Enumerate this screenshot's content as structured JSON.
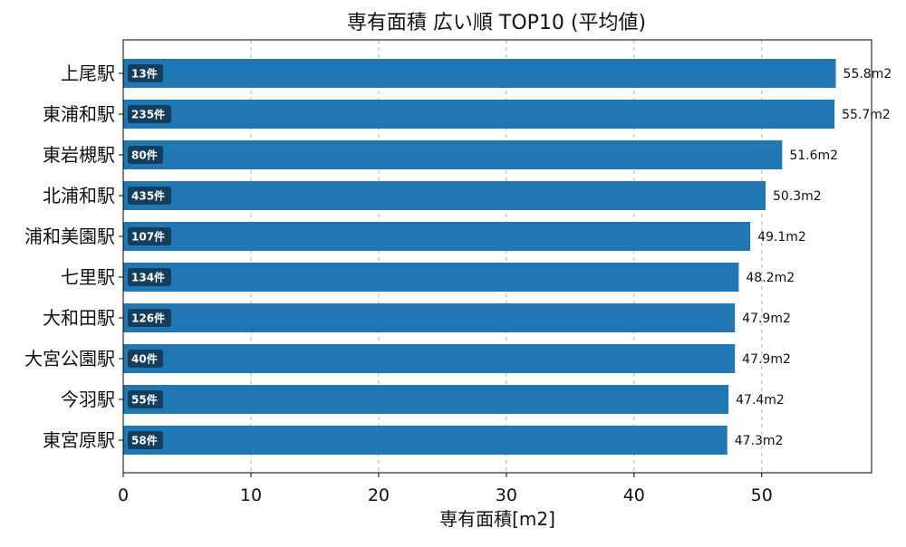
{
  "chart_data": {
    "type": "bar",
    "orientation": "horizontal",
    "title": "専有面積 広い順 TOP10 (平均値)",
    "xlabel": "専有面積[m2]",
    "ylabel": "",
    "xlim": [
      0,
      58.6
    ],
    "xticks": [
      0,
      10,
      20,
      30,
      40,
      50
    ],
    "grid": true,
    "colors": {
      "bar": "#2077b4",
      "count_badge": "#153e5c"
    },
    "categories": [
      "上尾駅",
      "東浦和駅",
      "東岩槻駅",
      "北浦和駅",
      "浦和美園駅",
      "七里駅",
      "大和田駅",
      "大宮公園駅",
      "今羽駅",
      "東宮原駅"
    ],
    "values": [
      55.8,
      55.7,
      51.6,
      50.3,
      49.1,
      48.2,
      47.9,
      47.9,
      47.4,
      47.3
    ],
    "value_labels": [
      "55.8m2",
      "55.7m2",
      "51.6m2",
      "50.3m2",
      "49.1m2",
      "48.2m2",
      "47.9m2",
      "47.9m2",
      "47.4m2",
      "47.3m2"
    ],
    "count_labels": [
      "13件",
      "235件",
      "80件",
      "435件",
      "107件",
      "134件",
      "126件",
      "40件",
      "55件",
      "58件"
    ]
  }
}
